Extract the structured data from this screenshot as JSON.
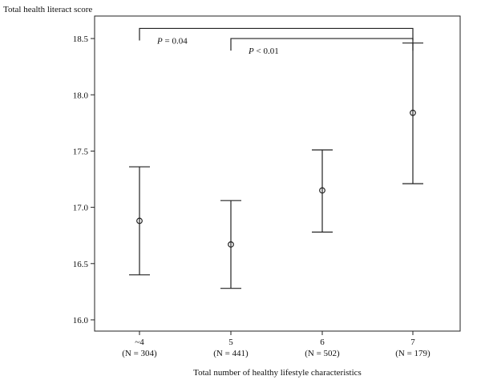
{
  "chart_data": {
    "type": "scatter",
    "title": "",
    "ylabel": "Total health literact score",
    "xlabel": "Total number of healthy lifestyle characteristics",
    "ylim": [
      15.9,
      18.7
    ],
    "yticks": [
      "16.0",
      "16.5",
      "17.0",
      "17.5",
      "18.0",
      "18.5"
    ],
    "categories": [
      "~4",
      "5",
      "6",
      "7"
    ],
    "category_n": [
      "(N = 304)",
      "(N = 441)",
      "(N = 502)",
      "(N = 179)"
    ],
    "means": [
      16.88,
      16.67,
      17.15,
      17.84
    ],
    "lower": [
      16.4,
      16.28,
      16.78,
      17.21
    ],
    "upper": [
      17.36,
      17.06,
      17.51,
      18.46
    ],
    "grid": false,
    "annotations": [
      {
        "text_italic": "P",
        "text_rest": " = 0.04",
        "from": 0,
        "to": 3,
        "level": 18.59
      },
      {
        "text_italic": "P",
        "text_rest": " < 0.01",
        "from": 1,
        "to": 3,
        "level": 18.5
      }
    ]
  }
}
